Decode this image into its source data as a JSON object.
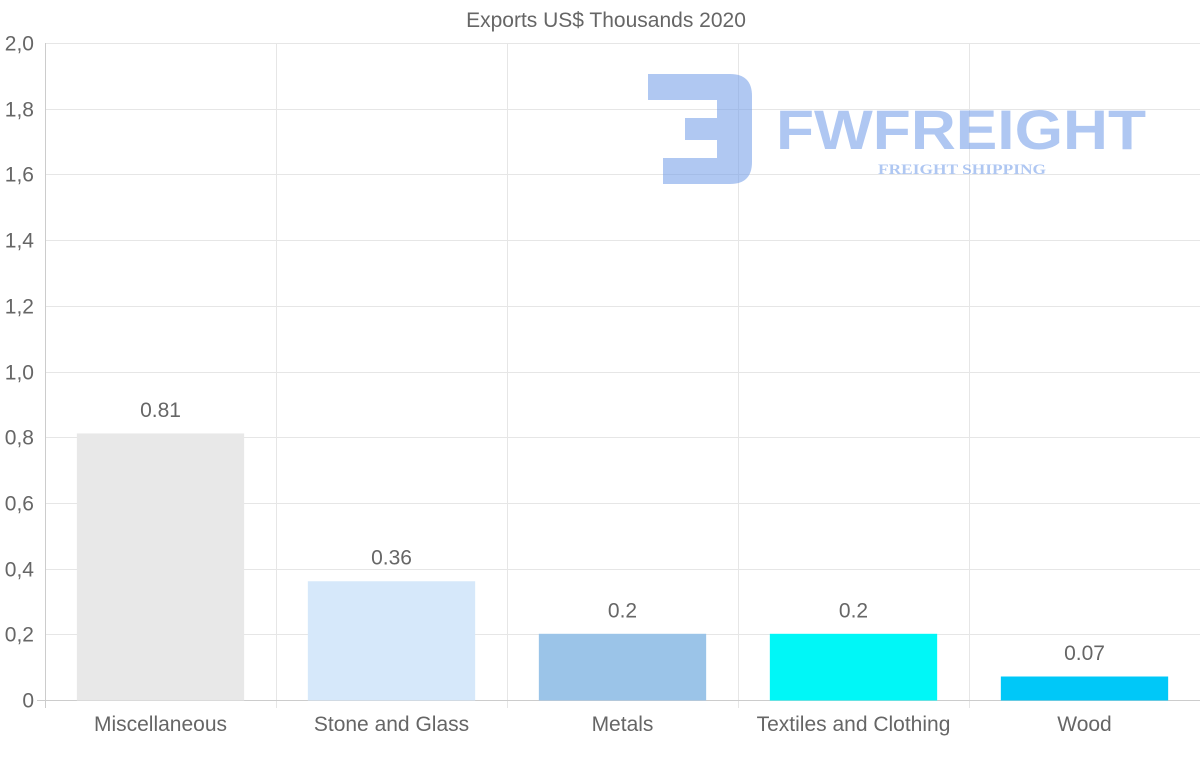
{
  "chart_data": {
    "type": "bar",
    "title": "Exports US$ Thousands 2020",
    "categories": [
      "Miscellaneous",
      "Stone and Glass",
      "Metals",
      "Textiles and Clothing",
      "Wood"
    ],
    "values": [
      0.81,
      0.36,
      0.2,
      0.2,
      0.07
    ],
    "value_labels": [
      "0.81",
      "0.36",
      "0.2",
      "0.2",
      "0.07"
    ],
    "colors": [
      "#e8e8e8",
      "#d6e8fa",
      "#9bc4e8",
      "#00f7f7",
      "#00c8f8"
    ],
    "ylim": [
      0,
      2
    ],
    "yticks": [
      0,
      0.2,
      0.4,
      0.6,
      0.8,
      1.0,
      1.2,
      1.4,
      1.6,
      1.8,
      2.0
    ],
    "ytick_labels": [
      "0",
      "0,2",
      "0,4",
      "0,6",
      "0,8",
      "1,0",
      "1,2",
      "1,4",
      "1,6",
      "1,8",
      "2,0"
    ],
    "xlabel": "",
    "ylabel": "",
    "grid": true,
    "legend": "none"
  },
  "watermark": {
    "brand": "FWFREIGHT",
    "tagline": "FREIGHT SHIPPING",
    "color": "#6f9ae8"
  }
}
